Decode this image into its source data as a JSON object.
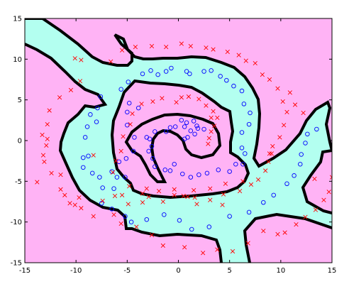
{
  "chart_data": {
    "type": "scatter",
    "title": "",
    "xlabel": "",
    "ylabel": "",
    "xlim": [
      -15,
      15
    ],
    "ylim": [
      -15,
      15
    ],
    "xticks": [
      -15,
      -10,
      -5,
      0,
      5,
      10,
      15
    ],
    "yticks": [
      -15,
      -10,
      -5,
      0,
      5,
      10,
      15
    ],
    "grid": false,
    "legend": "none",
    "background_region_color": "#ffb3f5",
    "decision_region_color": "#b3fff0",
    "boundary_color": "#000000",
    "series": [
      {
        "marker": "o",
        "color": "#0000ff",
        "points": [
          [
            0.8,
            2.2
          ],
          [
            1.5,
            2.4
          ],
          [
            0.3,
            2.5
          ],
          [
            -0.8,
            1.6
          ],
          [
            1.9,
            1.5
          ],
          [
            2.5,
            1.4
          ],
          [
            1.8,
            1.8
          ],
          [
            1.2,
            1.2
          ],
          [
            0.6,
            1.7
          ],
          [
            1.6,
            0.8
          ],
          [
            0.9,
            0.4
          ],
          [
            0.6,
            0.2
          ],
          [
            -0.3,
            1.7
          ],
          [
            -1.2,
            1.1
          ],
          [
            -2.3,
            1.1
          ],
          [
            -2.8,
            0.2
          ],
          [
            -3.1,
            0.4
          ],
          [
            -2.6,
            -0.7
          ],
          [
            -2.9,
            -1.3
          ],
          [
            -2.5,
            -2.2
          ],
          [
            -2.3,
            -3.2
          ],
          [
            -1.3,
            -3.6
          ],
          [
            -0.4,
            -2.9
          ],
          [
            -0.8,
            -3.7
          ],
          [
            0.4,
            -4.1
          ],
          [
            1.2,
            -4.5
          ],
          [
            2.0,
            -4.2
          ],
          [
            2.8,
            -4.0
          ],
          [
            3.9,
            -3.6
          ],
          [
            5.0,
            -3.8
          ],
          [
            5.6,
            -2.9
          ],
          [
            6.3,
            -2.9
          ],
          [
            6.5,
            -1.6
          ],
          [
            6.2,
            -0.9
          ],
          [
            6.2,
            1.0
          ],
          [
            6.9,
            2.0
          ],
          [
            7.0,
            3.4
          ],
          [
            6.4,
            4.5
          ],
          [
            -4.8,
            4.6
          ],
          [
            -3.9,
            4.0
          ],
          [
            -5.0,
            3.5
          ],
          [
            -5.0,
            1.9
          ],
          [
            -4.3,
            0.4
          ],
          [
            -4.4,
            -1.3
          ],
          [
            -5.1,
            -2.2
          ],
          [
            -5.8,
            -2.6
          ],
          [
            -6.5,
            -3.8
          ],
          [
            -6.0,
            -4.5
          ],
          [
            -5.2,
            -4.5
          ],
          [
            -3.5,
            8.2
          ],
          [
            -2.7,
            8.6
          ],
          [
            -2.0,
            8.1
          ],
          [
            -1.2,
            8.5
          ],
          [
            -0.7,
            8.9
          ],
          [
            0.8,
            8.5
          ],
          [
            1.1,
            8.2
          ],
          [
            2.5,
            8.5
          ],
          [
            3.2,
            8.6
          ],
          [
            4.1,
            7.9
          ],
          [
            4.7,
            7.4
          ],
          [
            5.4,
            6.7
          ],
          [
            6.2,
            6.1
          ],
          [
            -4.9,
            7.2
          ],
          [
            -5.6,
            6.3
          ],
          [
            -7.6,
            5.4
          ],
          [
            -7.9,
            4.0
          ],
          [
            -8.6,
            3.2
          ],
          [
            -8.0,
            2.3
          ],
          [
            -8.9,
            1.7
          ],
          [
            -9.1,
            0.4
          ],
          [
            -8.8,
            -1.9
          ],
          [
            -9.3,
            -2.1
          ],
          [
            -9.3,
            -3.3
          ],
          [
            -8.4,
            -4.0
          ],
          [
            -7.7,
            -4.5
          ],
          [
            -7.4,
            -5.8
          ],
          [
            -6.3,
            -5.9
          ],
          [
            -7.5,
            -7.7
          ],
          [
            -6.5,
            -8.4
          ],
          [
            -5.2,
            -9.3
          ],
          [
            -4.6,
            -10.0
          ],
          [
            -3.1,
            -9.7
          ],
          [
            -1.4,
            -9.1
          ],
          [
            0.1,
            -9.8
          ],
          [
            1.3,
            -10.9
          ],
          [
            3.0,
            -10.6
          ],
          [
            5.0,
            -9.3
          ],
          [
            6.9,
            -8.8
          ],
          [
            8.3,
            -7.6
          ],
          [
            9.3,
            -6.7
          ],
          [
            10.6,
            -5.3
          ],
          [
            11.3,
            -4.3
          ],
          [
            11.9,
            -2.9
          ],
          [
            12.0,
            -1.7
          ],
          [
            12.4,
            -0.3
          ],
          [
            12.6,
            0.8
          ],
          [
            13.5,
            1.4
          ]
        ]
      },
      {
        "marker": "x",
        "color": "#ff0000",
        "points": [
          [
            -0.2,
            4.7
          ],
          [
            -1.6,
            5.2
          ],
          [
            -2.5,
            4.8
          ],
          [
            -3.6,
            4.5
          ],
          [
            -4.5,
            3.3
          ],
          [
            -4.7,
            2.0
          ],
          [
            -5.4,
            0.5
          ],
          [
            -5.6,
            -1.3
          ],
          [
            -6.1,
            -2.5
          ],
          [
            -6.4,
            -3.9
          ],
          [
            -4.8,
            -5.6
          ],
          [
            -3.1,
            -5.9
          ],
          [
            -1.9,
            -6.2
          ],
          [
            -0.4,
            -6.7
          ],
          [
            0.5,
            -6.8
          ],
          [
            1.6,
            -7.0
          ],
          [
            3.1,
            -7.3
          ],
          [
            4.4,
            -6.6
          ],
          [
            6.0,
            -6.2
          ],
          [
            7.1,
            -5.4
          ],
          [
            7.8,
            -4.8
          ],
          [
            8.5,
            -3.7
          ],
          [
            8.8,
            -2.6
          ],
          [
            9.1,
            -1.6
          ],
          [
            9.2,
            -0.7
          ],
          [
            9.9,
            0.4
          ],
          [
            10.3,
            1.9
          ],
          [
            10.6,
            3.5
          ],
          [
            10.2,
            4.8
          ],
          [
            0.3,
            5.3
          ],
          [
            1.0,
            5.4
          ],
          [
            2.0,
            5.1
          ],
          [
            2.7,
            4.3
          ],
          [
            3.4,
            3.6
          ],
          [
            3.8,
            2.8
          ],
          [
            3.2,
            2.8
          ],
          [
            3.5,
            1.8
          ],
          [
            3.2,
            1.1
          ],
          [
            3.0,
            0.3
          ],
          [
            2.9,
            -0.4
          ],
          [
            -10.1,
            10.1
          ],
          [
            -9.5,
            9.9
          ],
          [
            -6.6,
            9.7
          ],
          [
            -5.5,
            11.1
          ],
          [
            -4.2,
            11.5
          ],
          [
            -2.6,
            11.6
          ],
          [
            -1.2,
            11.5
          ],
          [
            0.3,
            11.9
          ],
          [
            1.2,
            11.6
          ],
          [
            2.7,
            11.4
          ],
          [
            3.4,
            11.2
          ],
          [
            4.8,
            10.9
          ],
          [
            5.9,
            10.5
          ],
          [
            6.6,
            9.8
          ],
          [
            7.5,
            9.5
          ],
          [
            8.2,
            8.1
          ],
          [
            8.9,
            7.5
          ],
          [
            9.7,
            6.4
          ],
          [
            10.9,
            5.9
          ],
          [
            11.4,
            4.4
          ],
          [
            12.2,
            3.4
          ],
          [
            -9.6,
            7.3
          ],
          [
            -10.5,
            6.2
          ],
          [
            -11.6,
            5.3
          ],
          [
            -12.6,
            3.7
          ],
          [
            -12.8,
            2.0
          ],
          [
            -13.3,
            0.7
          ],
          [
            -12.9,
            -0.6
          ],
          [
            -13.2,
            -1.8
          ],
          [
            -13.1,
            -2.6
          ],
          [
            -12.4,
            -4.0
          ],
          [
            -11.5,
            -4.2
          ],
          [
            -11.5,
            -6.0
          ],
          [
            -11.1,
            -6.7
          ],
          [
            -10.6,
            -7.7
          ],
          [
            -9.5,
            -8.3
          ],
          [
            -8.3,
            -9.3
          ],
          [
            -6.3,
            -9.1
          ],
          [
            -5.6,
            -10.2
          ],
          [
            -4.1,
            -10.6
          ],
          [
            -2.6,
            -11.6
          ],
          [
            -1.5,
            -12.9
          ],
          [
            0.6,
            -13.1
          ],
          [
            2.4,
            -13.8
          ],
          [
            3.8,
            -13.4
          ],
          [
            5.3,
            -13.6
          ],
          [
            6.8,
            -12.6
          ],
          [
            8.3,
            -11.1
          ],
          [
            9.7,
            -11.5
          ],
          [
            10.4,
            -11.3
          ],
          [
            11.5,
            -10.3
          ],
          [
            12.4,
            -9.4
          ],
          [
            13.4,
            -8.5
          ],
          [
            14.2,
            -7.3
          ],
          [
            14.7,
            -6.3
          ],
          [
            15.0,
            -4.5
          ],
          [
            13.3,
            -4.7
          ],
          [
            8.9,
            -1.6
          ],
          [
            -12.8,
            0.2
          ],
          [
            -10.1,
            -7.9
          ],
          [
            -9.7,
            -7.0
          ],
          [
            -13.8,
            -5.1
          ],
          [
            -8.3,
            -1.8
          ],
          [
            -7.4,
            -7.4
          ],
          [
            -3.5,
            -6.5
          ],
          [
            -0.4,
            -6.0
          ],
          [
            1.5,
            -6.1
          ],
          [
            3.1,
            -5.9
          ],
          [
            4.6,
            -5.3
          ],
          [
            6.3,
            -5.0
          ],
          [
            -2.9,
            -6.9
          ],
          [
            0.9,
            -6.9
          ],
          [
            -1.5,
            -7.5
          ],
          [
            -3.5,
            -7.6
          ],
          [
            4.3,
            -7.9
          ],
          [
            1.8,
            -7.8
          ],
          [
            -6.2,
            -6.8
          ],
          [
            -5.5,
            -6.7
          ],
          [
            -4.9,
            -7.8
          ]
        ]
      }
    ]
  }
}
